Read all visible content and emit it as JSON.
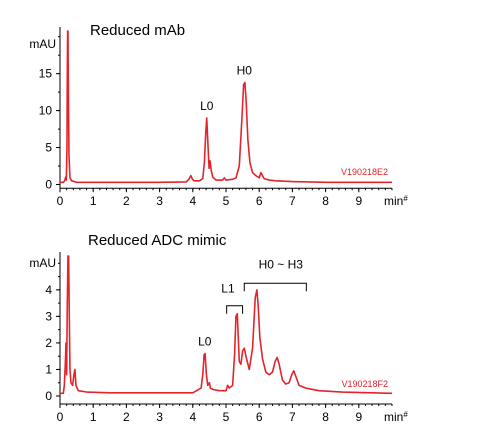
{
  "chart_data": [
    {
      "type": "line",
      "title": "Reduced mAb",
      "ylabel": "mAU",
      "xlabel": "min",
      "x_ticks": [
        0,
        1,
        2,
        3,
        4,
        5,
        6,
        7,
        8,
        9
      ],
      "y_ticks": [
        0,
        5,
        10,
        15
      ],
      "xlim": [
        0,
        10
      ],
      "ylim": [
        -0.5,
        20.5
      ],
      "trace_label": "V190218E2",
      "series": [
        {
          "points": [
            [
              0,
              0.3
            ],
            [
              0.1,
              0.3
            ],
            [
              0.14,
              0.5
            ],
            [
              0.17,
              1.0
            ],
            [
              0.19,
              0.6
            ],
            [
              0.21,
              5
            ],
            [
              0.22,
              15
            ],
            [
              0.23,
              21
            ],
            [
              0.24,
              21
            ],
            [
              0.25,
              14
            ],
            [
              0.27,
              4
            ],
            [
              0.3,
              0.9
            ],
            [
              0.35,
              0.5
            ],
            [
              0.5,
              0.3
            ],
            [
              1,
              0.3
            ],
            [
              2,
              0.3
            ],
            [
              3,
              0.3
            ],
            [
              3.8,
              0.35
            ],
            [
              3.88,
              0.7
            ],
            [
              3.94,
              1.2
            ],
            [
              3.98,
              0.8
            ],
            [
              4.03,
              0.5
            ],
            [
              4.2,
              0.5
            ],
            [
              4.3,
              0.8
            ],
            [
              4.35,
              3
            ],
            [
              4.39,
              7
            ],
            [
              4.42,
              9
            ],
            [
              4.45,
              6
            ],
            [
              4.49,
              2.2
            ],
            [
              4.52,
              3.2
            ],
            [
              4.55,
              2
            ],
            [
              4.6,
              1
            ],
            [
              4.7,
              0.6
            ],
            [
              4.9,
              0.6
            ],
            [
              4.95,
              0.9
            ],
            [
              5.0,
              0.6
            ],
            [
              5.2,
              0.7
            ],
            [
              5.3,
              0.9
            ],
            [
              5.4,
              2.5
            ],
            [
              5.48,
              9
            ],
            [
              5.53,
              13.5
            ],
            [
              5.57,
              13.8
            ],
            [
              5.61,
              11
            ],
            [
              5.66,
              6
            ],
            [
              5.72,
              3
            ],
            [
              5.8,
              1.6
            ],
            [
              5.9,
              1.2
            ],
            [
              6.0,
              0.9
            ],
            [
              6.05,
              1.6
            ],
            [
              6.1,
              1.2
            ],
            [
              6.15,
              0.8
            ],
            [
              6.3,
              0.6
            ],
            [
              6.5,
              0.5
            ],
            [
              7,
              0.4
            ],
            [
              7.5,
              0.35
            ],
            [
              8,
              0.3
            ],
            [
              9,
              0.3
            ],
            [
              10,
              0.3
            ]
          ]
        }
      ],
      "peak_labels": [
        {
          "text": "L0",
          "x": 4.42,
          "y": 9
        },
        {
          "text": "H0",
          "x": 5.55,
          "y": 13.8
        }
      ]
    },
    {
      "type": "line",
      "title": "Reduced ADC mimic",
      "ylabel": "mAU",
      "xlabel": "min",
      "x_ticks": [
        0,
        1,
        2,
        3,
        4,
        5,
        6,
        7,
        8,
        9
      ],
      "y_ticks": [
        0,
        1,
        2,
        3,
        4
      ],
      "xlim": [
        0,
        10
      ],
      "ylim": [
        -0.3,
        5.2
      ],
      "trace_label": "V190218F2",
      "series": [
        {
          "points": [
            [
              0,
              0.1
            ],
            [
              0.1,
              0.1
            ],
            [
              0.13,
              0.4
            ],
            [
              0.16,
              1.2
            ],
            [
              0.18,
              2.0
            ],
            [
              0.2,
              0.8
            ],
            [
              0.22,
              3.5
            ],
            [
              0.24,
              5.3
            ],
            [
              0.26,
              5.3
            ],
            [
              0.28,
              3
            ],
            [
              0.3,
              1.0
            ],
            [
              0.33,
              0.5
            ],
            [
              0.38,
              0.4
            ],
            [
              0.42,
              0.8
            ],
            [
              0.45,
              1.0
            ],
            [
              0.48,
              0.4
            ],
            [
              0.55,
              0.2
            ],
            [
              0.8,
              0.15
            ],
            [
              1.5,
              0.12
            ],
            [
              2.5,
              0.12
            ],
            [
              3.5,
              0.12
            ],
            [
              4.0,
              0.12
            ],
            [
              4.25,
              0.3
            ],
            [
              4.3,
              0.8
            ],
            [
              4.34,
              1.55
            ],
            [
              4.37,
              1.6
            ],
            [
              4.41,
              0.8
            ],
            [
              4.45,
              0.4
            ],
            [
              4.5,
              0.5
            ],
            [
              4.53,
              0.3
            ],
            [
              4.6,
              0.25
            ],
            [
              4.8,
              0.2
            ],
            [
              5.0,
              0.2
            ],
            [
              5.05,
              0.4
            ],
            [
              5.1,
              0.3
            ],
            [
              5.2,
              0.4
            ],
            [
              5.26,
              1.6
            ],
            [
              5.3,
              3.0
            ],
            [
              5.34,
              3.1
            ],
            [
              5.37,
              2.2
            ],
            [
              5.4,
              1.3
            ],
            [
              5.45,
              1.2
            ],
            [
              5.5,
              1.7
            ],
            [
              5.55,
              1.8
            ],
            [
              5.6,
              1.5
            ],
            [
              5.7,
              1.0
            ],
            [
              5.8,
              1.8
            ],
            [
              5.88,
              3.7
            ],
            [
              5.93,
              4.0
            ],
            [
              5.97,
              3.4
            ],
            [
              6.02,
              2.2
            ],
            [
              6.1,
              1.4
            ],
            [
              6.2,
              0.9
            ],
            [
              6.3,
              0.8
            ],
            [
              6.4,
              0.9
            ],
            [
              6.48,
              1.3
            ],
            [
              6.54,
              1.45
            ],
            [
              6.6,
              1.2
            ],
            [
              6.7,
              0.6
            ],
            [
              6.8,
              0.45
            ],
            [
              6.9,
              0.5
            ],
            [
              6.98,
              0.8
            ],
            [
              7.04,
              0.95
            ],
            [
              7.1,
              0.75
            ],
            [
              7.2,
              0.4
            ],
            [
              7.4,
              0.3
            ],
            [
              7.8,
              0.2
            ],
            [
              8.5,
              0.15
            ],
            [
              10,
              0.1
            ]
          ]
        }
      ],
      "peak_labels": [
        {
          "text": "L0",
          "x": 4.36,
          "y": 1.6
        },
        {
          "text": "L1",
          "x": 5.06,
          "y": 3.6
        },
        {
          "text": "H0 ~ H3",
          "x": 6.65,
          "y": 4.5
        }
      ],
      "brackets": [
        {
          "x1": 5.02,
          "x2": 5.5,
          "y": 3.4
        },
        {
          "x1": 5.55,
          "x2": 7.42,
          "y": 4.25
        }
      ]
    }
  ],
  "x_suffix": "#"
}
